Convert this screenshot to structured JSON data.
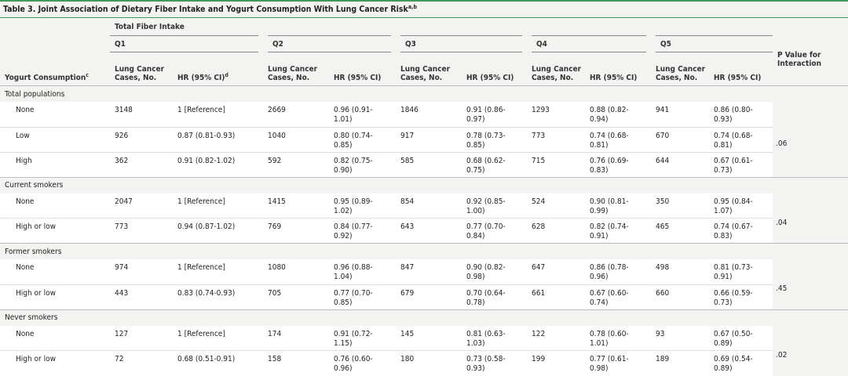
{
  "title": "Table 3. Joint Association of Dietary Fiber Intake and Yogurt Consumption With Lung Cancer Risk",
  "title_sup": "a,b",
  "header": {
    "yogurt": "Yogurt Consumption",
    "yogurt_sup": "c",
    "spanner": "Total Fiber Intake",
    "p_value": "P Value for Interaction",
    "quintiles": [
      {
        "label": "Q1",
        "cases": "Lung Cancer Cases, No.",
        "hr": "HR (95% CI)",
        "hr_sup": "d"
      },
      {
        "label": "Q2",
        "cases": "Lung Cancer Cases, No.",
        "hr": "HR (95% CI)"
      },
      {
        "label": "Q3",
        "cases": "Lung Cancer Cases, No.",
        "hr": "HR (95% CI)"
      },
      {
        "label": "Q4",
        "cases": "Lung Cancer Cases, No.",
        "hr": "HR (95% CI)"
      },
      {
        "label": "Q5",
        "cases": "Lung Cancer Cases, No.",
        "hr": "HR (95% CI)"
      }
    ]
  },
  "groups": [
    {
      "label": "Total populations",
      "p": ".06",
      "rows": [
        {
          "label": "None",
          "cells": [
            3148,
            "1 [Reference]",
            2669,
            "0.96 (0.91-1.01)",
            1846,
            "0.91 (0.86-0.97)",
            1293,
            "0.88 (0.82-0.94)",
            941,
            "0.86 (0.80-0.93)"
          ]
        },
        {
          "label": "Low",
          "cells": [
            926,
            "0.87 (0.81-0.93)",
            1040,
            "0.80 (0.74-0.85)",
            917,
            "0.78 (0.73-0.85)",
            773,
            "0.74 (0.68-0.81)",
            670,
            "0.74 (0.68-0.81)"
          ]
        },
        {
          "label": "High",
          "cells": [
            362,
            "0.91 (0.82-1.02)",
            592,
            "0.82 (0.75-0.90)",
            585,
            "0.68 (0.62-0.75)",
            715,
            "0.76 (0.69-0.83)",
            644,
            "0.67 (0.61-0.73)"
          ]
        }
      ]
    },
    {
      "label": "Current smokers",
      "p": ".04",
      "rows": [
        {
          "label": "None",
          "cells": [
            2047,
            "1 [Reference]",
            1415,
            "0.95 (0.89-1.02)",
            854,
            "0.92 (0.85-1.00)",
            524,
            "0.90 (0.81-0.99)",
            350,
            "0.95 (0.84-1.07)"
          ]
        },
        {
          "label": "High or low",
          "cells": [
            773,
            "0.94 (0.87-1.02)",
            769,
            "0.84 (0.77-0.92)",
            643,
            "0.77 (0.70-0.84)",
            628,
            "0.82 (0.74-0.91)",
            465,
            "0.74 (0.67-0.83)"
          ]
        }
      ]
    },
    {
      "label": "Former smokers",
      "p": ".45",
      "rows": [
        {
          "label": "None",
          "cells": [
            974,
            "1 [Reference]",
            1080,
            "0.96 (0.88-1.04)",
            847,
            "0.90 (0.82-0.98)",
            647,
            "0.86 (0.78-0.96)",
            498,
            "0.81 (0.73-0.91)"
          ]
        },
        {
          "label": "High or low",
          "cells": [
            443,
            "0.83 (0.74-0.93)",
            705,
            "0.77 (0.70-0.85)",
            679,
            "0.70 (0.64-0.78)",
            661,
            "0.67 (0.60-0.74)",
            660,
            "0.66 (0.59-0.73)"
          ]
        }
      ]
    },
    {
      "label": "Never smokers",
      "p": ".02",
      "rows": [
        {
          "label": "None",
          "cells": [
            127,
            "1 [Reference]",
            174,
            "0.91 (0.72-1.15)",
            145,
            "0.81 (0.63-1.03)",
            122,
            "0.78 (0.60-1.01)",
            93,
            "0.67 (0.50-0.89)"
          ]
        },
        {
          "label": "High or low",
          "cells": [
            72,
            "0.68 (0.51-0.91)",
            158,
            "0.76 (0.60-0.96)",
            180,
            "0.73 (0.58-0.93)",
            199,
            "0.77 (0.61-0.98)",
            189,
            "0.69 (0.54-0.89)"
          ]
        }
      ]
    }
  ]
}
